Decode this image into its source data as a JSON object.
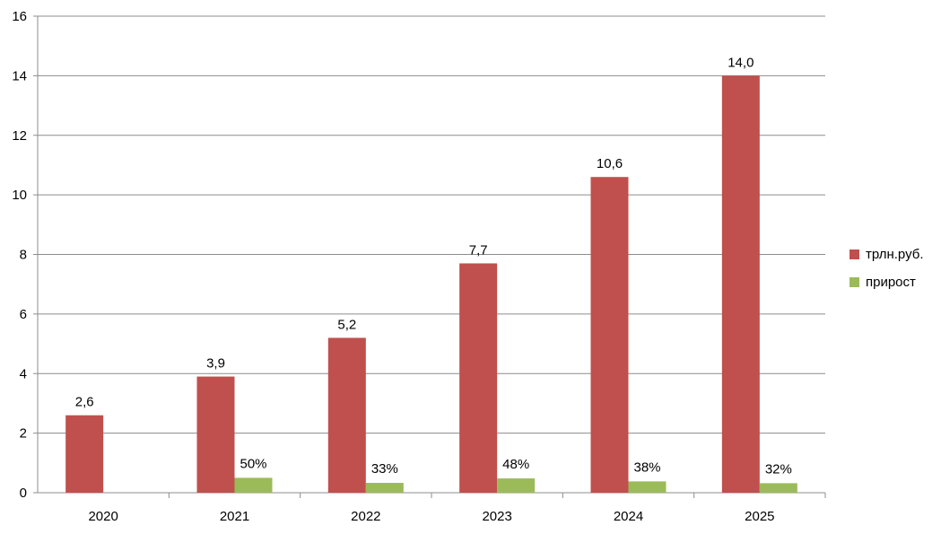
{
  "chart_data": {
    "type": "bar",
    "categories": [
      "2020",
      "2021",
      "2022",
      "2023",
      "2024",
      "2025"
    ],
    "series": [
      {
        "name": "трлн.руб.",
        "color": "#C0504D",
        "values": [
          2.6,
          3.9,
          5.2,
          7.7,
          10.6,
          14.0
        ],
        "data_labels": [
          "2,6",
          "3,9",
          "5,2",
          "7,7",
          "10,6",
          "14,0"
        ]
      },
      {
        "name": "прирост",
        "color": "#9BBB59",
        "values": [
          null,
          0.5,
          0.33,
          0.48,
          0.38,
          0.32
        ],
        "data_labels": [
          "",
          "50%",
          "33%",
          "48%",
          "38%",
          "32%"
        ]
      }
    ],
    "ylim": [
      0,
      16
    ],
    "yticks": [
      "0",
      "2",
      "4",
      "6",
      "8",
      "10",
      "12",
      "14",
      "16"
    ],
    "grid": true,
    "legend": "right"
  }
}
